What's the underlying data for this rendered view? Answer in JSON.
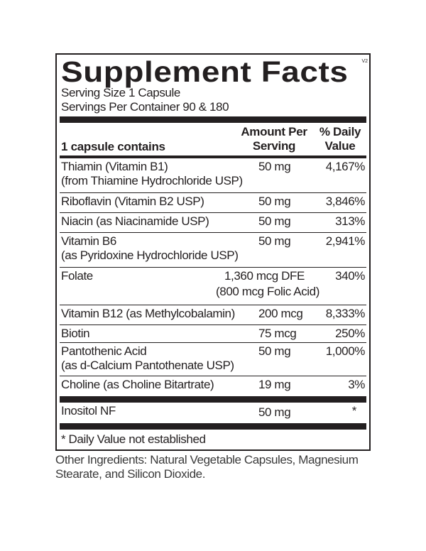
{
  "label": {
    "title": "Supplement Facts",
    "version_mark": "V2",
    "serving_size": "Serving Size 1 Capsule",
    "servings_per_container": "Servings Per Container 90 & 180",
    "headers": {
      "contains": "1 capsule contains",
      "amount_line1": "Amount Per",
      "amount_line2": "Serving",
      "dv_line1": "% Daily",
      "dv_line2": "Value"
    },
    "rows": [
      {
        "name": "Thiamin (Vitamin B1)",
        "name2": "(from Thiamine Hydrochloride USP)",
        "amount": "50 mg",
        "dv": "4,167%"
      },
      {
        "name": "Riboflavin (Vitamin B2 USP)",
        "amount": "50 mg",
        "dv": "3,846%"
      },
      {
        "name": "Niacin (as Niacinamide USP)",
        "amount": "50 mg",
        "dv": "313%"
      },
      {
        "name": "Vitamin B6",
        "name2": "(as Pyridoxine Hydrochloride USP)",
        "amount": "50 mg",
        "dv": "2,941%"
      },
      {
        "name": "Folate",
        "amount": "1,360 mcg DFE",
        "amount2": "(800 mcg Folic Acid)",
        "dv": "340%"
      },
      {
        "name": "Vitamin B12 (as Methylcobalamin)",
        "amount": "200 mcg",
        "dv": "8,333%"
      },
      {
        "name": "Biotin",
        "amount": "75 mcg",
        "dv": "250%"
      },
      {
        "name": "Pantothenic Acid",
        "name2": "(as d-Calcium Pantothenate USP)",
        "amount": "50 mg",
        "dv": "1,000%"
      },
      {
        "name": "Choline (as Choline Bitartrate)",
        "amount": "19 mg",
        "dv": "3%"
      },
      {
        "name": "Inositol NF",
        "amount": "50 mg",
        "dv": "*"
      }
    ],
    "footnote": "* Daily Value not established"
  },
  "other_ingredients": "Other Ingredients: Natural Vegetable Capsules, Magnesium Stearate, and Silicon Dioxide."
}
